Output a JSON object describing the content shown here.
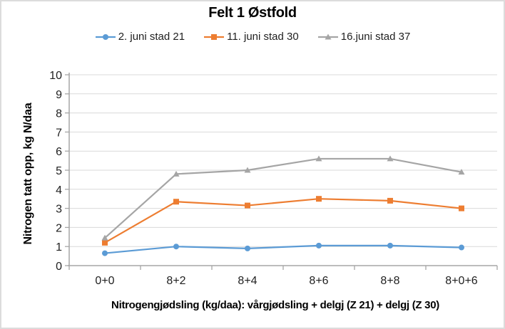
{
  "chart_data": {
    "type": "line",
    "title": "Felt 1 Østfold",
    "categories": [
      "0+0",
      "8+2",
      "8+4",
      "8+6",
      "8+8",
      "8+0+6"
    ],
    "series": [
      {
        "name": "2. juni stad 21",
        "color": "#5B9BD5",
        "marker": "circle",
        "values": [
          0.65,
          1.0,
          0.9,
          1.05,
          1.05,
          0.95
        ]
      },
      {
        "name": "11. juni stad 30",
        "color": "#ED7D31",
        "marker": "square",
        "values": [
          1.2,
          3.35,
          3.15,
          3.5,
          3.4,
          3.0
        ]
      },
      {
        "name": "16.juni stad 37",
        "color": "#A5A5A5",
        "marker": "triangle",
        "values": [
          1.45,
          4.8,
          5.0,
          5.6,
          5.6,
          4.9
        ]
      }
    ],
    "xlabel": "Nitrogengjødsling (kg/daa): vårgjødsling + delgj (Z 21) + delgj (Z 30)",
    "ylabel": "Nitrogen tatt opp, kg N/daa",
    "ylim": [
      0,
      10
    ],
    "ytick_step": 1,
    "grid": true,
    "legend_position": "top",
    "colors": {
      "gridline": "#D9D9D9",
      "axis": "#A6A6A6",
      "tick_label": "#1F1F1F",
      "background": "#FFFFFF",
      "frame_border": "#DCDCDC"
    }
  }
}
